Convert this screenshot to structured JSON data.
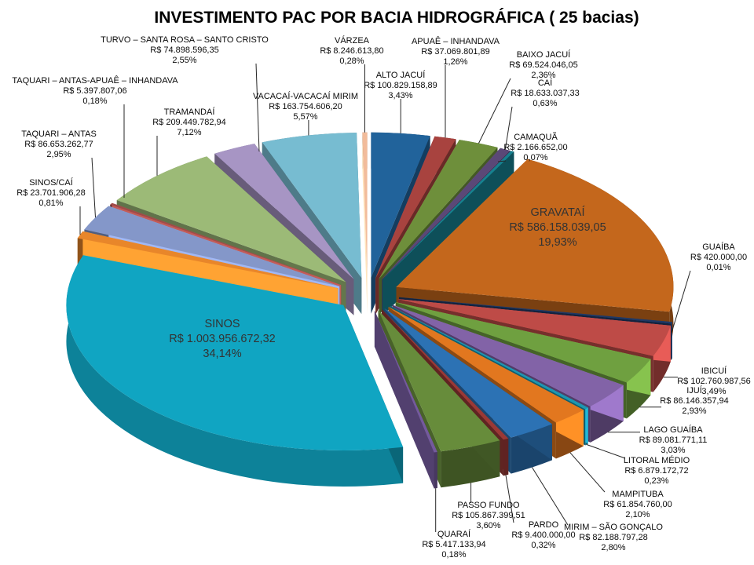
{
  "title": "INVESTIMENTO PAC POR BACIA HIDROGRÁFICA ( 25 bacias)",
  "chart_data": {
    "type": "pie",
    "title": "INVESTIMENTO PAC POR BACIA HIDROGRÁFICA ( 25 bacias)",
    "style": "3d-exploded-pie",
    "direction": "clockwise",
    "start_angle_deg": 0,
    "currency": "R$",
    "legend": "none",
    "slices": [
      {
        "name": "ALTO JACUÍ",
        "value": 100829158.89,
        "value_label": "R$ 100.829.158,89",
        "pct": 3.43,
        "pct_label": "3,43%",
        "color": "#21639B"
      },
      {
        "name": "APUAÊ – INHANDAVA",
        "value": 37069801.89,
        "value_label": "R$ 37.069.801,89",
        "pct": 1.26,
        "pct_label": "1,26%",
        "color": "#A8433F"
      },
      {
        "name": "BAIXO JACUÍ",
        "value": 69524046.05,
        "value_label": "R$ 69.524.046,05",
        "pct": 2.36,
        "pct_label": "2,36%",
        "color": "#6E8F3B"
      },
      {
        "name": "CAÍ",
        "value": 18633037.33,
        "value_label": "R$ 18.633.037,33",
        "pct": 0.63,
        "pct_label": "0,63%",
        "color": "#5B4877"
      },
      {
        "name": "CAMAQUÃ",
        "value": 2166652.0,
        "value_label": "R$ 2.166.652,00",
        "pct": 0.07,
        "pct_label": "0,07%",
        "color": "#17808F"
      },
      {
        "name": "GRAVATAÍ",
        "value": 586158039.05,
        "value_label": "R$ 586.158.039,05",
        "pct": 19.93,
        "pct_label": "19,93%",
        "color": "#C4671C"
      },
      {
        "name": "GUAÍBA",
        "value": 420000.0,
        "value_label": "R$ 420.000,00",
        "pct": 0.01,
        "pct_label": "0,01%",
        "color": "#1F3864"
      },
      {
        "name": "IBICUÍ",
        "value": 102760987.56,
        "value_label": "R$ 102.760.987,56",
        "pct": 3.49,
        "pct_label": "3,49%",
        "color": "#BE4B47"
      },
      {
        "name": "IJUÍ",
        "value": 86146357.94,
        "value_label": "R$ 86.146.357,94",
        "pct": 2.93,
        "pct_label": "2,93%",
        "color": "#6FA040"
      },
      {
        "name": "LAGO GUAÍBA",
        "value": 89081771.11,
        "value_label": "R$ 89.081.771,11",
        "pct": 3.03,
        "pct_label": "3,03%",
        "color": "#8263A7"
      },
      {
        "name": "LITORAL MÉDIO",
        "value": 6879172.72,
        "value_label": "R$ 6.879.172,72",
        "pct": 0.23,
        "pct_label": "0,23%",
        "color": "#1C97B1"
      },
      {
        "name": "MAMPITUBA",
        "value": 61854760.0,
        "value_label": "R$ 61.854.760,00",
        "pct": 2.1,
        "pct_label": "2,10%",
        "color": "#E2771F"
      },
      {
        "name": "MIRIM – SÃO GONÇALO",
        "value": 82188797.28,
        "value_label": "R$ 82.188.797,28",
        "pct": 2.8,
        "pct_label": "2,80%",
        "color": "#2C72B4"
      },
      {
        "name": "PARDO",
        "value": 9400000.0,
        "value_label": "R$ 9.400.000,00",
        "pct": 0.32,
        "pct_label": "0,32%",
        "color": "#9A3936"
      },
      {
        "name": "PASSO FUNDO",
        "value": 105867399.51,
        "value_label": "R$ 105.867.399,51",
        "pct": 3.6,
        "pct_label": "3,60%",
        "color": "#678C3B"
      },
      {
        "name": "QUARAÍ",
        "value": 5417133.94,
        "value_label": "R$ 5.417.133,94",
        "pct": 0.18,
        "pct_label": "0,18%",
        "color": "#745A9D"
      },
      {
        "name": "SINOS",
        "value": 1003956672.32,
        "value_label": "R$ 1.003.956.672,32",
        "pct": 34.14,
        "pct_label": "34,14%",
        "color": "#10A5C2"
      },
      {
        "name": "SINOS/CAÍ",
        "value": 23701906.28,
        "value_label": "R$ 23.701.906,28",
        "pct": 0.81,
        "pct_label": "0,81%",
        "color": "#E8862A"
      },
      {
        "name": "TAQUARI – ANTAS",
        "value": 86653262.77,
        "value_label": "R$ 86.653.262,77",
        "pct": 2.95,
        "pct_label": "2,95%",
        "color": "#8497C9"
      },
      {
        "name": "TAQUARI – ANTAS-APUAÊ – INHANDAVA",
        "value": 5397807.06,
        "value_label": "R$ 5.397.807,06",
        "pct": 0.18,
        "pct_label": "0,18%",
        "color": "#A04B48"
      },
      {
        "name": "TRAMANDAÍ",
        "value": 209449782.94,
        "value_label": "R$ 209.449.782,94",
        "pct": 7.12,
        "pct_label": "7,12%",
        "color": "#9CBA77"
      },
      {
        "name": "TURVO – SANTA ROSA – SANTO CRISTO",
        "value": 74898596.35,
        "value_label": "R$ 74.898.596,35",
        "pct": 2.55,
        "pct_label": "2,55%",
        "color": "#A795C4"
      },
      {
        "name": "VACACAÍ-VACACAÍ MIRIM",
        "value": 163754606.2,
        "value_label": "R$ 163.754.606,20",
        "pct": 5.57,
        "pct_label": "5,57%",
        "color": "#77BCD1"
      },
      {
        "name": "VÁRZEA",
        "value": 8246613.8,
        "value_label": "R$ 8.246.613,80",
        "pct": 0.28,
        "pct_label": "0,28%",
        "color": "#F2BC9B"
      }
    ]
  }
}
